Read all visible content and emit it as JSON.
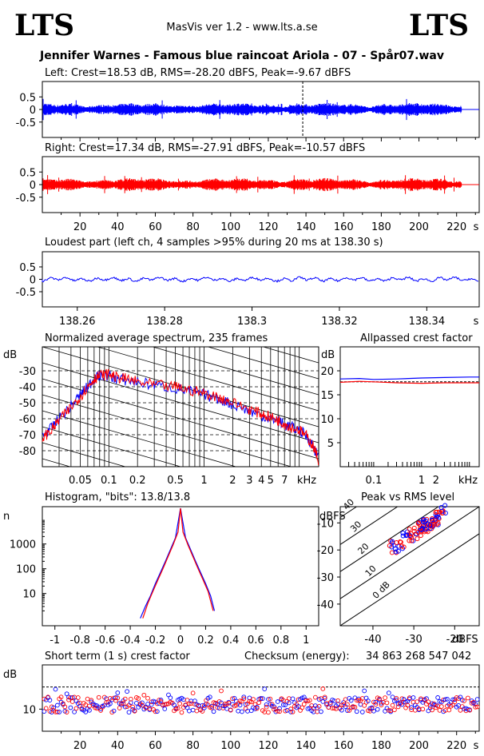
{
  "header": {
    "logo_left": "LTS",
    "logo_right": "LTS",
    "app_title": "MasVis ver 1.2 - www.lts.a.se",
    "file_title": "Jennifer Warnes - Famous blue raincoat Ariola - 07 - Spår07.wav"
  },
  "colors": {
    "left": "#0000ff",
    "right": "#ff0000",
    "axis": "#000000",
    "background": "#ffffff"
  },
  "chart_data": [
    {
      "id": "left",
      "type": "line",
      "title": "Left: Crest=18.53 dB, RMS=-28.20 dBFS, Peak=-9.67 dBFS",
      "ylim": [
        -1,
        1
      ],
      "yticks": [
        "0.5",
        "0",
        "-0.5"
      ],
      "xlim": [
        0,
        232
      ],
      "marker_at_s": 138.3,
      "color": "#0000ff"
    },
    {
      "id": "right",
      "type": "line",
      "title": "Right: Crest=17.34 dB, RMS=-27.91 dBFS, Peak=-10.57 dBFS",
      "ylim": [
        -1,
        1
      ],
      "yticks": [
        "0.5",
        "0",
        "-0.5"
      ],
      "xlim": [
        0,
        232
      ],
      "xticks": [
        "20",
        "40",
        "60",
        "80",
        "100",
        "120",
        "140",
        "160",
        "180",
        "200",
        "220"
      ],
      "xunit": "s",
      "color": "#ff0000"
    },
    {
      "id": "loudest",
      "type": "line",
      "title": "Loudest part (left  ch, 4 samples >95% during 20 ms at 138.30 s)",
      "ylim": [
        -1,
        1
      ],
      "yticks": [
        "0.5",
        "0",
        "-0.5"
      ],
      "xlim": [
        138.252,
        138.352
      ],
      "xticks": [
        "138.26",
        "138.28",
        "138.3",
        "138.32",
        "138.34"
      ],
      "xunit": "s",
      "color": "#0000ff"
    },
    {
      "id": "spectrum",
      "type": "line",
      "title": "Normalized average spectrum, 235 frames",
      "ylabel": "dB",
      "ylim": [
        -90,
        -15
      ],
      "yticks": [
        "-30",
        "-40",
        "-50",
        "-60",
        "-70",
        "-80"
      ],
      "xlim_khz": [
        0.02,
        16
      ],
      "xticks": [
        "0.05",
        "0.1",
        "0.2",
        "0.5",
        "1",
        "2",
        "3",
        "4",
        "5",
        "7"
      ],
      "xunit": "kHz",
      "series": [
        {
          "color": "#0000ff",
          "x_khz": [
            0.02,
            0.025,
            0.03,
            0.04,
            0.05,
            0.06,
            0.07,
            0.08,
            0.1,
            0.12,
            0.15,
            0.2,
            0.3,
            0.5,
            0.7,
            1,
            1.5,
            2,
            3,
            4,
            5,
            6,
            7,
            8,
            10,
            12,
            14,
            16
          ],
          "y": [
            -70,
            -66,
            -60,
            -52,
            -45,
            -40,
            -35,
            -33,
            -33,
            -35,
            -36,
            -37,
            -39,
            -41,
            -43,
            -45,
            -48,
            -51,
            -55,
            -58,
            -60,
            -61,
            -64,
            -65,
            -67,
            -71,
            -77,
            -85
          ]
        },
        {
          "color": "#ff0000",
          "x_khz": [
            0.02,
            0.025,
            0.03,
            0.04,
            0.05,
            0.06,
            0.07,
            0.08,
            0.1,
            0.12,
            0.15,
            0.2,
            0.3,
            0.5,
            0.7,
            1,
            1.5,
            2,
            3,
            4,
            5,
            6,
            7,
            8,
            10,
            12,
            14,
            16
          ],
          "y": [
            -72,
            -67,
            -61,
            -53,
            -46,
            -40,
            -35,
            -33,
            -32,
            -34,
            -35,
            -37,
            -39,
            -40,
            -42,
            -44,
            -47,
            -50,
            -54,
            -57,
            -59,
            -61,
            -63,
            -65,
            -67,
            -71,
            -77,
            -86
          ]
        }
      ]
    },
    {
      "id": "allpassed",
      "type": "line",
      "title": "Allpassed crest factor",
      "ylabel": "dB",
      "ylim": [
        0,
        25
      ],
      "yticks": [
        "20",
        "15",
        "10",
        "5"
      ],
      "xticks": [
        "0.1",
        "1",
        "2"
      ],
      "xunit": "kHz",
      "series": [
        {
          "color": "#0000ff",
          "x_khz": [
            0.02,
            0.05,
            0.1,
            0.3,
            1,
            3,
            10,
            16
          ],
          "y": [
            18.3,
            18.4,
            18.2,
            18.3,
            18.5,
            18.6,
            18.7,
            18.7
          ]
        },
        {
          "color": "#ff0000",
          "x_khz": [
            0.02,
            0.05,
            0.1,
            0.3,
            1,
            3,
            10,
            16
          ],
          "y": [
            17.6,
            17.8,
            17.7,
            17.5,
            17.4,
            17.5,
            17.5,
            17.5
          ]
        }
      ]
    },
    {
      "id": "histogram",
      "type": "line",
      "title": "Histogram, \"bits\": 13.8/13.8",
      "ylabel": "n",
      "ylog": true,
      "yticks": [
        "1000",
        "100",
        "10"
      ],
      "xlim": [
        -1.1,
        1.1
      ],
      "xticks": [
        "-1",
        "-0.8",
        "-0.6",
        "-0.4",
        "-0.2",
        "0",
        "0.2",
        "0.4",
        "0.6",
        "0.8",
        "1"
      ],
      "series": [
        {
          "color": "#0000ff",
          "x": [
            -0.32,
            -0.28,
            -0.24,
            -0.2,
            -0.16,
            -0.12,
            -0.08,
            -0.04,
            0,
            0.04,
            0.08,
            0.12,
            0.16,
            0.2,
            0.24,
            0.27
          ],
          "y": [
            1,
            3,
            8,
            25,
            70,
            200,
            600,
            1800,
            20000,
            1800,
            600,
            200,
            70,
            25,
            8,
            2
          ]
        },
        {
          "color": "#ff0000",
          "x": [
            -0.3,
            -0.26,
            -0.22,
            -0.18,
            -0.14,
            -0.1,
            -0.06,
            -0.02,
            0,
            0.02,
            0.06,
            0.1,
            0.14,
            0.18,
            0.22,
            0.26
          ],
          "y": [
            1,
            4,
            12,
            35,
            100,
            300,
            900,
            3000,
            20000,
            3000,
            900,
            300,
            100,
            35,
            12,
            2
          ]
        }
      ]
    },
    {
      "id": "peak_vs_rms",
      "type": "scatter",
      "title": "Peak vs RMS level",
      "ylabel": "dBFS",
      "xunit": "dBFS",
      "xlim": [
        -48,
        -14
      ],
      "ylim": [
        -48,
        -4
      ],
      "xticks": [
        "-40",
        "-30",
        "-20"
      ],
      "yticks": [
        "-10",
        "-20",
        "-30",
        "-40"
      ],
      "crest_lines": [
        "40",
        "30",
        "20",
        "10",
        "0 dB"
      ]
    },
    {
      "id": "short_term_crest",
      "type": "scatter",
      "title": "Short term (1 s) crest factor",
      "checksum_label": "Checksum (energy):",
      "checksum_value": "34 863 268 547 042",
      "ylabel": "dB",
      "ylim": [
        0,
        30
      ],
      "yticks": [
        "10"
      ],
      "xlim": [
        0,
        232
      ],
      "xticks": [
        "20",
        "40",
        "60",
        "80",
        "100",
        "120",
        "140",
        "160",
        "180",
        "200",
        "220"
      ],
      "xunit": "s"
    }
  ]
}
